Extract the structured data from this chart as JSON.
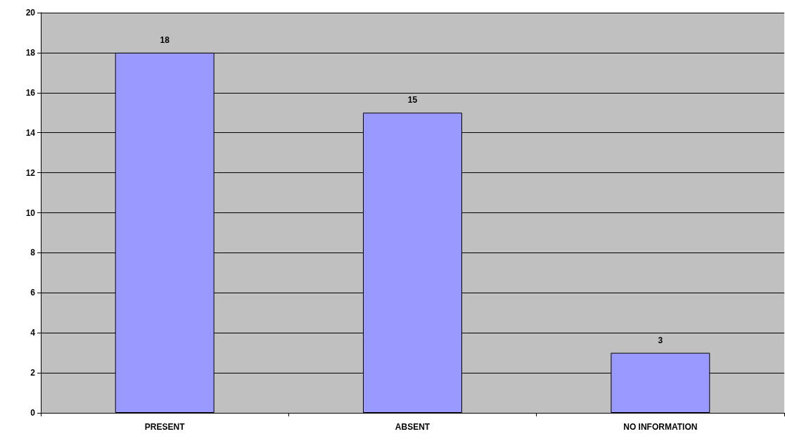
{
  "chart_data": {
    "type": "bar",
    "categories": [
      "PRESENT",
      "ABSENT",
      "NO INFORMATION"
    ],
    "values": [
      18,
      15,
      3
    ],
    "color": "#9999ff",
    "ylim": [
      0,
      20
    ],
    "yticks": [
      0,
      2,
      4,
      6,
      8,
      10,
      12,
      14,
      16,
      18,
      20
    ],
    "grid": "y",
    "data_labels": true
  }
}
